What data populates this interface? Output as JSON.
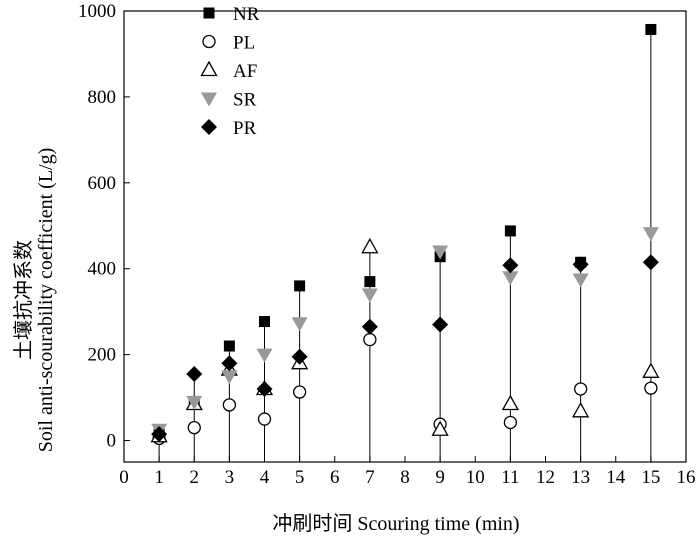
{
  "chart_data": {
    "type": "scatter",
    "xlabel": "冲刷时间 Scouring time (min)",
    "ylabel_cn": "土壤抗冲系数",
    "ylabel_en": "Soil anti-scourability coefficient (L/g)",
    "xlim": [
      0,
      16
    ],
    "ylim": [
      -50,
      1000
    ],
    "x_ticks": [
      0,
      1,
      2,
      3,
      4,
      5,
      6,
      7,
      8,
      9,
      10,
      11,
      12,
      13,
      14,
      15,
      16
    ],
    "y_ticks": [
      0,
      200,
      400,
      600,
      800,
      1000
    ],
    "grid": false,
    "legend_position": "top-left",
    "series": [
      {
        "name": "NR",
        "marker": "filled-square",
        "color": "#000000",
        "points": [
          [
            1,
            15
          ],
          [
            2,
            90
          ],
          [
            3,
            220
          ],
          [
            4,
            277
          ],
          [
            5,
            360
          ],
          [
            7,
            370
          ],
          [
            9,
            428
          ],
          [
            11,
            488
          ],
          [
            13,
            415
          ],
          [
            15,
            957
          ]
        ]
      },
      {
        "name": "PL",
        "marker": "open-circle",
        "color": "#000000",
        "points": [
          [
            1,
            5
          ],
          [
            2,
            30
          ],
          [
            3,
            83
          ],
          [
            4,
            50
          ],
          [
            5,
            113
          ],
          [
            7,
            235
          ],
          [
            9,
            38
          ],
          [
            11,
            42
          ],
          [
            13,
            120
          ],
          [
            15,
            122
          ]
        ]
      },
      {
        "name": "AF",
        "marker": "open-triangle-up",
        "color": "#000000",
        "points": [
          [
            1,
            10
          ],
          [
            2,
            85
          ],
          [
            3,
            165
          ],
          [
            4,
            120
          ],
          [
            5,
            180
          ],
          [
            7,
            450
          ],
          [
            9,
            25
          ],
          [
            11,
            85
          ],
          [
            13,
            68
          ],
          [
            15,
            160
          ]
        ]
      },
      {
        "name": "SR",
        "marker": "filled-triangle-down",
        "color": "#999999",
        "points": [
          [
            1,
            25
          ],
          [
            2,
            90
          ],
          [
            3,
            150
          ],
          [
            4,
            200
          ],
          [
            5,
            273
          ],
          [
            7,
            340
          ],
          [
            9,
            440
          ],
          [
            11,
            380
          ],
          [
            13,
            375
          ],
          [
            15,
            483
          ]
        ]
      },
      {
        "name": "PR",
        "marker": "filled-diamond",
        "color": "#000000",
        "points": [
          [
            1,
            15
          ],
          [
            2,
            155
          ],
          [
            3,
            180
          ],
          [
            4,
            120
          ],
          [
            5,
            195
          ],
          [
            7,
            265
          ],
          [
            9,
            270
          ],
          [
            11,
            408
          ],
          [
            13,
            410
          ],
          [
            15,
            415
          ]
        ]
      }
    ]
  }
}
